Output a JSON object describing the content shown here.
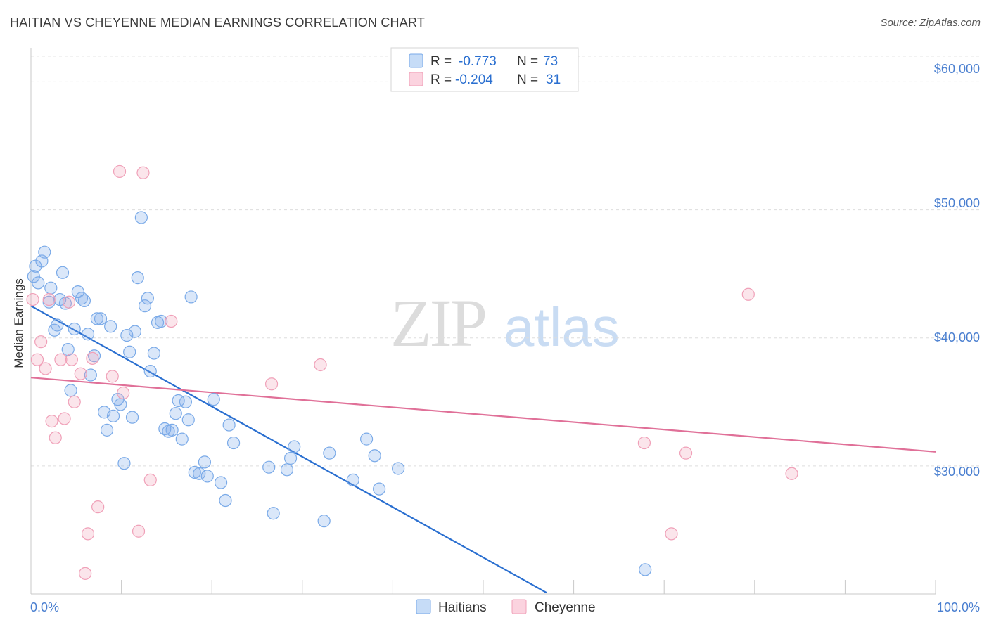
{
  "title": "HAITIAN VS CHEYENNE MEDIAN EARNINGS CORRELATION CHART",
  "source": "Source: ZipAtlas.com",
  "watermark": {
    "zip": "ZIP",
    "atlas": "atlas"
  },
  "legend_top": [
    {
      "r_label": "R =",
      "r_value": "-0.773",
      "n_label": "N =",
      "n_value": "73",
      "color": "#7aaae8"
    },
    {
      "r_label": "R =",
      "r_value": "-0.204",
      "n_label": "N =",
      "n_value": "31",
      "color": "#f0a0b8"
    }
  ],
  "legend_bottom": [
    {
      "label": "Haitians",
      "color": "#7aaae8"
    },
    {
      "label": "Cheyenne",
      "color": "#f0a0b8"
    }
  ],
  "chart_data": {
    "type": "scatter",
    "title": "HAITIAN VS CHEYENNE MEDIAN EARNINGS CORRELATION CHART",
    "xlabel": "",
    "ylabel": "Median Earnings",
    "xlim": [
      0,
      100
    ],
    "ylim": [
      20000,
      62000
    ],
    "x_tick_labels": [
      "0.0%",
      "100.0%"
    ],
    "y_ticks": [
      30000,
      40000,
      50000,
      60000
    ],
    "y_tick_labels": [
      "$30,000",
      "$40,000",
      "$50,000",
      "$60,000"
    ],
    "grid": true,
    "legend_position": "top-center",
    "series": [
      {
        "name": "Haitians",
        "color": "#7aaae8",
        "line_color": "#2a6fd0",
        "trend": {
          "x": [
            0,
            57
          ],
          "y": [
            42500,
            20100
          ]
        },
        "points": [
          [
            0.3,
            44800
          ],
          [
            0.5,
            45600
          ],
          [
            0.8,
            44300
          ],
          [
            1.2,
            46000
          ],
          [
            1.5,
            46700
          ],
          [
            2.0,
            42800
          ],
          [
            2.2,
            43900
          ],
          [
            2.6,
            40600
          ],
          [
            2.9,
            41000
          ],
          [
            3.2,
            43000
          ],
          [
            3.5,
            45100
          ],
          [
            3.8,
            42700
          ],
          [
            4.1,
            39100
          ],
          [
            4.4,
            35900
          ],
          [
            4.8,
            40700
          ],
          [
            5.2,
            43600
          ],
          [
            5.6,
            43100
          ],
          [
            5.9,
            42900
          ],
          [
            6.3,
            40300
          ],
          [
            6.6,
            37100
          ],
          [
            7.0,
            38600
          ],
          [
            7.3,
            41500
          ],
          [
            7.7,
            41500
          ],
          [
            8.1,
            34200
          ],
          [
            8.4,
            32800
          ],
          [
            8.8,
            40900
          ],
          [
            9.1,
            33900
          ],
          [
            9.6,
            35200
          ],
          [
            9.9,
            34800
          ],
          [
            10.3,
            30200
          ],
          [
            10.6,
            40200
          ],
          [
            10.9,
            38900
          ],
          [
            11.2,
            33800
          ],
          [
            11.5,
            40500
          ],
          [
            11.8,
            44700
          ],
          [
            12.2,
            49400
          ],
          [
            12.6,
            42500
          ],
          [
            12.9,
            43100
          ],
          [
            13.2,
            37400
          ],
          [
            13.6,
            38800
          ],
          [
            14.0,
            41200
          ],
          [
            14.4,
            41300
          ],
          [
            14.8,
            32900
          ],
          [
            15.2,
            32700
          ],
          [
            15.6,
            32800
          ],
          [
            16.0,
            34100
          ],
          [
            16.3,
            35100
          ],
          [
            16.7,
            32100
          ],
          [
            17.1,
            35000
          ],
          [
            17.4,
            33600
          ],
          [
            17.7,
            43200
          ],
          [
            18.1,
            29500
          ],
          [
            18.6,
            29400
          ],
          [
            19.2,
            30300
          ],
          [
            19.5,
            29200
          ],
          [
            20.2,
            35200
          ],
          [
            21.0,
            28700
          ],
          [
            21.5,
            27300
          ],
          [
            21.9,
            33200
          ],
          [
            22.4,
            31800
          ],
          [
            26.3,
            29900
          ],
          [
            26.8,
            26300
          ],
          [
            28.3,
            29700
          ],
          [
            28.7,
            30600
          ],
          [
            29.1,
            31500
          ],
          [
            32.4,
            25700
          ],
          [
            33.0,
            31000
          ],
          [
            35.6,
            28900
          ],
          [
            37.1,
            32100
          ],
          [
            38.0,
            30800
          ],
          [
            38.5,
            28200
          ],
          [
            40.6,
            29800
          ],
          [
            67.9,
            21900
          ]
        ]
      },
      {
        "name": "Cheyenne",
        "color": "#f0a0b8",
        "line_color": "#e07098",
        "trend": {
          "x": [
            0,
            100
          ],
          "y": [
            36900,
            31100
          ]
        },
        "points": [
          [
            0.2,
            43000
          ],
          [
            0.7,
            38300
          ],
          [
            1.1,
            39700
          ],
          [
            1.6,
            37600
          ],
          [
            2.0,
            43000
          ],
          [
            2.3,
            33500
          ],
          [
            2.7,
            32200
          ],
          [
            3.3,
            38300
          ],
          [
            3.7,
            33700
          ],
          [
            4.2,
            42800
          ],
          [
            4.5,
            38300
          ],
          [
            4.8,
            35000
          ],
          [
            5.5,
            37200
          ],
          [
            6.0,
            21600
          ],
          [
            6.3,
            24700
          ],
          [
            6.8,
            38400
          ],
          [
            7.4,
            26800
          ],
          [
            9.0,
            37000
          ],
          [
            9.8,
            53000
          ],
          [
            10.2,
            35700
          ],
          [
            11.9,
            24900
          ],
          [
            12.4,
            52900
          ],
          [
            13.2,
            28900
          ],
          [
            15.5,
            41300
          ],
          [
            26.6,
            36400
          ],
          [
            32.0,
            37900
          ],
          [
            67.8,
            31800
          ],
          [
            70.8,
            24700
          ],
          [
            72.4,
            31000
          ],
          [
            79.3,
            43400
          ],
          [
            84.1,
            29400
          ]
        ]
      }
    ]
  }
}
